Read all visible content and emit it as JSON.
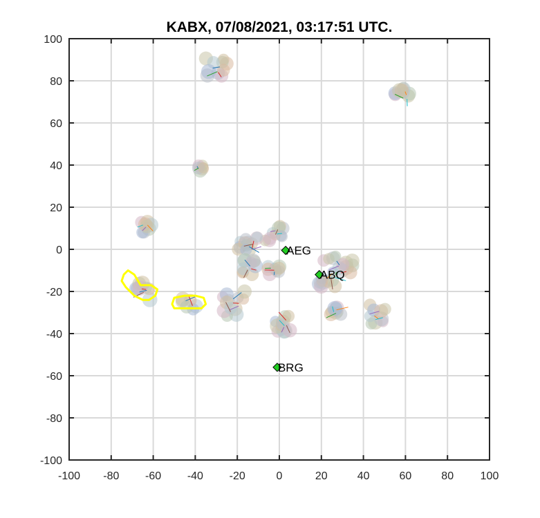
{
  "chart_data": {
    "type": "scatter",
    "title": "KABX, 07/08/2021, 03:17:51 UTC.",
    "xlabel": "",
    "ylabel": "",
    "xlim": [
      -100,
      100
    ],
    "ylim": [
      -100,
      100
    ],
    "x_ticks": [
      "-100",
      "-80",
      "-60",
      "-40",
      "-20",
      "0",
      "20",
      "40",
      "60",
      "80",
      "100"
    ],
    "y_ticks": [
      "100",
      "80",
      "60",
      "40",
      "20",
      "0",
      "-20",
      "-40",
      "-60",
      "-80",
      "-100"
    ],
    "grid": true,
    "colors": {
      "station_marker": "#22cc22",
      "highlight": "#ffff00",
      "grid": "#d9d9d9",
      "axis": "#262626"
    },
    "stations": [
      {
        "name": "AEG",
        "x": 3,
        "y": -0.5
      },
      {
        "name": "ABQ",
        "x": 19,
        "y": -12
      },
      {
        "name": "BRG",
        "x": -1,
        "y": -56
      }
    ],
    "clusters": [
      {
        "x": -31,
        "y": 86,
        "spread": 6,
        "n": 10
      },
      {
        "x": -38,
        "y": 39,
        "spread": 2,
        "n": 6
      },
      {
        "x": 59,
        "y": 73,
        "spread": 4,
        "n": 9
      },
      {
        "x": -64,
        "y": 11,
        "spread": 3,
        "n": 8
      },
      {
        "x": -3,
        "y": 8,
        "spread": 5,
        "n": 10
      },
      {
        "x": -15,
        "y": 1,
        "spread": 5,
        "n": 12
      },
      {
        "x": -15,
        "y": -8,
        "spread": 4,
        "n": 10
      },
      {
        "x": -3,
        "y": -10,
        "spread": 3,
        "n": 8
      },
      {
        "x": 27,
        "y": -10,
        "spread": 8,
        "n": 22
      },
      {
        "x": 27,
        "y": -30,
        "spread": 3,
        "n": 8
      },
      {
        "x": 46,
        "y": -31,
        "spread": 5,
        "n": 9
      },
      {
        "x": 2,
        "y": -35,
        "spread": 4,
        "n": 12
      },
      {
        "x": -22,
        "y": -27,
        "spread": 7,
        "n": 12
      },
      {
        "x": -65,
        "y": -20,
        "spread": 4,
        "n": 8
      },
      {
        "x": -43,
        "y": -25,
        "spread": 4,
        "n": 6
      }
    ],
    "highlight_regions": [
      {
        "points": [
          [
            -74,
            -12
          ],
          [
            -72,
            -10
          ],
          [
            -69,
            -12
          ],
          [
            -66,
            -17
          ],
          [
            -61,
            -17
          ],
          [
            -58,
            -19
          ],
          [
            -59,
            -22
          ],
          [
            -62,
            -24
          ],
          [
            -65,
            -24
          ],
          [
            -69,
            -22
          ],
          [
            -73,
            -18
          ],
          [
            -75,
            -15
          ]
        ]
      },
      {
        "points": [
          [
            -50,
            -23
          ],
          [
            -45,
            -22
          ],
          [
            -40,
            -22
          ],
          [
            -36,
            -23
          ],
          [
            -35,
            -26
          ],
          [
            -37,
            -28
          ],
          [
            -41,
            -28
          ],
          [
            -46,
            -28
          ],
          [
            -50,
            -28
          ],
          [
            -51,
            -26
          ]
        ]
      }
    ]
  }
}
